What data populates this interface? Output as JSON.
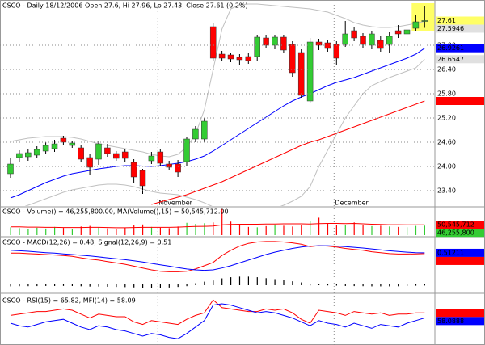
{
  "chart_data": [
    {
      "type": "candlestick",
      "title": "CSCO - Daily 18/12/2006 Open 27.6, Hi 27.96, Lo 27.43, Close 27.61 (0.2%)",
      "categories": [
        null,
        null,
        null,
        null,
        null,
        null,
        null,
        null,
        null,
        null,
        null,
        null,
        null,
        null,
        null,
        null,
        null,
        "November",
        null,
        null,
        null,
        null,
        null,
        null,
        null,
        null,
        null,
        null,
        null,
        null,
        null,
        null,
        null,
        null,
        null,
        null,
        null,
        "December",
        null,
        null,
        null,
        null,
        null,
        null,
        null,
        null,
        null,
        null
      ],
      "open": [
        23.82,
        24.22,
        24.24,
        24.28,
        24.38,
        24.44,
        24.7,
        24.52,
        24.46,
        24.22,
        24.18,
        24.46,
        24.32,
        24.36,
        24.1,
        23.9,
        24.14,
        24.36,
        24.06,
        24.06,
        24.12,
        24.68,
        24.68,
        27.46,
        26.78,
        26.76,
        26.7,
        26.72,
        26.72,
        27.18,
        27.0,
        27.2,
        27.02,
        26.82,
        25.62,
        27.08,
        27.06,
        27.02,
        27.02,
        27.36,
        27.22,
        27.0,
        27.12,
        27.02,
        27.36,
        27.28,
        27.42,
        27.6
      ],
      "high": [
        24.22,
        24.4,
        24.44,
        24.5,
        24.6,
        24.66,
        24.76,
        24.64,
        24.52,
        24.3,
        24.64,
        24.56,
        24.38,
        24.44,
        24.18,
        23.94,
        24.36,
        24.42,
        24.14,
        24.16,
        24.72,
        25.0,
        25.2,
        27.54,
        26.86,
        26.82,
        26.78,
        26.8,
        27.26,
        27.26,
        27.26,
        27.26,
        27.1,
        26.9,
        27.18,
        27.16,
        27.12,
        27.1,
        27.6,
        27.44,
        27.3,
        27.36,
        27.24,
        27.32,
        27.5,
        27.42,
        27.76,
        27.96
      ],
      "low": [
        23.72,
        24.12,
        24.14,
        24.2,
        24.3,
        24.36,
        24.54,
        24.46,
        24.1,
        23.78,
        24.04,
        24.24,
        24.14,
        24.12,
        23.6,
        23.32,
        24.06,
        24.0,
        23.92,
        23.74,
        24.02,
        24.6,
        24.6,
        26.6,
        26.6,
        26.58,
        26.52,
        26.54,
        26.6,
        26.92,
        26.9,
        26.8,
        26.22,
        25.7,
        25.58,
        26.88,
        26.84,
        26.5,
        26.96,
        27.1,
        26.94,
        26.9,
        26.84,
        26.8,
        27.18,
        27.2,
        27.36,
        27.43
      ],
      "close": [
        24.06,
        24.32,
        24.34,
        24.42,
        24.52,
        24.56,
        24.6,
        24.58,
        24.18,
        23.98,
        24.56,
        24.32,
        24.2,
        24.2,
        23.74,
        23.52,
        24.26,
        24.08,
        23.98,
        23.86,
        24.68,
        24.92,
        25.12,
        26.68,
        26.68,
        26.66,
        26.64,
        26.62,
        27.2,
        27.0,
        27.2,
        26.88,
        26.32,
        25.76,
        27.08,
        27.0,
        26.92,
        26.68,
        27.28,
        27.18,
        27.02,
        27.28,
        26.92,
        27.22,
        27.28,
        27.38,
        27.58,
        27.61
      ],
      "up_color": "#33cc33",
      "down_color": "#ff0000",
      "series": [
        {
          "color": "#0000ff",
          "values": [
            23.22,
            23.3,
            23.4,
            23.5,
            23.6,
            23.68,
            23.76,
            23.82,
            23.86,
            23.9,
            23.94,
            23.97,
            24.0,
            24.02,
            24.02,
            24.01,
            24.0,
            24.02,
            24.05,
            24.08,
            24.12,
            24.18,
            24.26,
            24.38,
            24.52,
            24.66,
            24.8,
            24.94,
            25.08,
            25.22,
            25.36,
            25.5,
            25.62,
            25.72,
            25.8,
            25.9,
            26.0,
            26.08,
            26.14,
            26.2,
            26.28,
            26.36,
            26.44,
            26.52,
            26.6,
            26.68,
            26.78,
            26.9261
          ]
        },
        {
          "color": "#ff0000",
          "values": [
            null,
            null,
            null,
            null,
            null,
            null,
            null,
            null,
            null,
            null,
            null,
            null,
            null,
            null,
            null,
            null,
            23.06,
            23.12,
            23.18,
            23.24,
            23.3,
            23.38,
            23.46,
            23.54,
            23.62,
            23.72,
            23.82,
            23.92,
            24.02,
            24.12,
            24.22,
            24.32,
            24.42,
            24.52,
            24.6,
            24.66,
            24.74,
            24.82,
            24.9,
            24.98,
            25.06,
            25.14,
            25.22,
            25.3,
            25.38,
            25.46,
            25.54,
            25.62
          ]
        },
        {
          "color": "#c0c0c0",
          "values": [
            24.62,
            24.66,
            24.7,
            24.72,
            24.74,
            24.74,
            24.74,
            24.72,
            24.68,
            24.62,
            24.56,
            24.52,
            24.48,
            24.44,
            24.4,
            24.36,
            24.3,
            24.26,
            24.24,
            24.3,
            24.48,
            24.8,
            25.4,
            26.4,
            27.4,
            27.9,
            28.0,
            28.02,
            28.02,
            28.0,
            27.98,
            27.96,
            27.94,
            27.92,
            27.9,
            27.86,
            27.82,
            27.74,
            27.66,
            27.56,
            27.5,
            27.46,
            27.44,
            27.44,
            27.46,
            27.5,
            27.54,
            27.5946
          ]
        },
        {
          "color": "#c0c0c0",
          "values": [
            22.9,
            22.96,
            23.04,
            23.12,
            23.2,
            23.28,
            23.36,
            23.42,
            23.46,
            23.5,
            23.54,
            23.56,
            23.56,
            23.54,
            23.5,
            23.44,
            23.38,
            23.34,
            23.32,
            23.3,
            23.24,
            23.18,
            23.1,
            23.0,
            22.9,
            22.86,
            22.84,
            22.84,
            22.86,
            22.9,
            22.96,
            23.04,
            23.14,
            23.26,
            23.5,
            24.0,
            24.4,
            24.8,
            25.2,
            25.5,
            25.8,
            26.0,
            26.1,
            26.2,
            26.28,
            26.36,
            26.44,
            26.6547
          ]
        }
      ],
      "ylim": [
        23.02,
        28.08
      ],
      "yticks": [
        {
          "value": 23.4,
          "label": "23.40"
        },
        {
          "value": 24,
          "label": "24.00"
        },
        {
          "value": 24.6,
          "label": "24.60"
        },
        {
          "value": 25.2,
          "label": "25.20"
        },
        {
          "value": 25.8,
          "label": "25.80"
        },
        {
          "value": 26.4,
          "label": "26.40"
        },
        {
          "value": 27,
          "label": "27.00"
        }
      ],
      "grid": true,
      "highlight_color": "#ffff66"
    },
    {
      "type": "bar",
      "title": "CSCO - Volume() = 46,255,800.00, MA(Volume(),15) = 50,545,712.00",
      "values": [
        38000000,
        34000000,
        30000000,
        36000000,
        32000000,
        40000000,
        35000000,
        30000000,
        42000000,
        45000000,
        38000000,
        33000000,
        30000000,
        36000000,
        48000000,
        52000000,
        40000000,
        36000000,
        34000000,
        42000000,
        60000000,
        55000000,
        58000000,
        62000000,
        128000000,
        66000000,
        48000000,
        40000000,
        38000000,
        44000000,
        52000000,
        46000000,
        42000000,
        48000000,
        70000000,
        85000000,
        56000000,
        50000000,
        48000000,
        62000000,
        50000000,
        44000000,
        46000000,
        42000000,
        40000000,
        38000000,
        45000000,
        46255800
      ],
      "value_label": "46,255,800",
      "series": [
        {
          "color": "#ff0000",
          "values": [
            40000000,
            40000000,
            39000000,
            39000000,
            38000000,
            38000000,
            37000000,
            37000000,
            37000000,
            38000000,
            38000000,
            37000000,
            36000000,
            36000000,
            37000000,
            38000000,
            38000000,
            38000000,
            38000000,
            39000000,
            41000000,
            42000000,
            43000000,
            44000000,
            50000000,
            52000000,
            53000000,
            53000000,
            53000000,
            54000000,
            54000000,
            55000000,
            55000000,
            55000000,
            54000000,
            56000000,
            57000000,
            57000000,
            56000000,
            57000000,
            55000000,
            53000000,
            52000000,
            51000000,
            51000000,
            50000000,
            50000000,
            50545712
          ],
          "value_label": "50,545,712"
        }
      ],
      "box_color": "#33cc33",
      "ylim": [
        0,
        130000000
      ]
    },
    {
      "type": "macd",
      "title": "CSCO - MACD(12,26) = 0.48, Signal(12,26,9) = 0.51",
      "series": [
        {
          "color": "#ff0000",
          "values": [
            0.5,
            0.5,
            0.48,
            0.46,
            0.44,
            0.42,
            0.4,
            0.36,
            0.3,
            0.24,
            0.2,
            0.14,
            0.08,
            0.02,
            -0.06,
            -0.14,
            -0.22,
            -0.28,
            -0.3,
            -0.3,
            -0.28,
            -0.18,
            -0.04,
            0.1,
            0.4,
            0.62,
            0.8,
            0.92,
            0.98,
            1.0,
            1.0,
            0.98,
            0.94,
            0.88,
            0.78,
            0.82,
            0.8,
            0.76,
            0.7,
            0.66,
            0.62,
            0.56,
            0.52,
            0.48,
            0.46,
            0.46,
            0.47,
            0.48
          ]
        },
        {
          "color": "#0000ff",
          "values": [
            0.62,
            0.6,
            0.58,
            0.55,
            0.52,
            0.5,
            0.47,
            0.44,
            0.41,
            0.38,
            0.34,
            0.3,
            0.26,
            0.22,
            0.17,
            0.12,
            0.06,
            0,
            -0.06,
            -0.12,
            -0.18,
            -0.22,
            -0.24,
            -0.22,
            -0.14,
            -0.04,
            0.08,
            0.2,
            0.32,
            0.44,
            0.54,
            0.62,
            0.7,
            0.76,
            0.8,
            0.82,
            0.82,
            0.8,
            0.78,
            0.75,
            0.72,
            0.68,
            0.64,
            0.6,
            0.57,
            0.54,
            0.52,
            0.51211
          ]
        }
      ],
      "histogram": {
        "color": "#000000",
        "values": [
          -0.12,
          -0.1,
          -0.1,
          -0.09,
          -0.08,
          -0.08,
          -0.07,
          -0.08,
          -0.11,
          -0.14,
          -0.14,
          -0.16,
          -0.18,
          -0.2,
          -0.23,
          -0.26,
          -0.28,
          -0.28,
          -0.24,
          -0.18,
          -0.1,
          0.04,
          0.2,
          0.32,
          0.54,
          0.66,
          0.72,
          0.72,
          0.66,
          0.56,
          0.46,
          0.36,
          0.24,
          0.12,
          -0.02,
          0,
          -0.02,
          -0.04,
          -0.08,
          -0.09,
          -0.1,
          -0.12,
          -0.12,
          -0.12,
          -0.11,
          -0.08,
          -0.05,
          -0.03
        ]
      },
      "ylim": [
        -0.6,
        1.1
      ]
    },
    {
      "type": "line",
      "title": "CSCO - RSI(15) = 65.82, MFI(14) = 58.09",
      "series": [
        {
          "color": "#ff0000",
          "values": [
            62,
            64,
            66,
            68,
            68,
            70,
            72,
            70,
            64,
            58,
            64,
            62,
            60,
            60,
            52,
            48,
            54,
            52,
            50,
            48,
            56,
            62,
            66,
            86,
            74,
            72,
            70,
            68,
            68,
            72,
            70,
            72,
            66,
            56,
            50,
            70,
            68,
            66,
            62,
            68,
            66,
            64,
            66,
            62,
            64,
            64,
            66,
            65.82
          ]
        },
        {
          "color": "#0000ff",
          "values": [
            50,
            46,
            44,
            48,
            52,
            54,
            56,
            50,
            44,
            40,
            46,
            44,
            40,
            38,
            34,
            30,
            34,
            32,
            28,
            26,
            34,
            44,
            54,
            78,
            80,
            78,
            74,
            70,
            66,
            68,
            66,
            62,
            58,
            52,
            46,
            54,
            50,
            48,
            44,
            50,
            46,
            42,
            48,
            46,
            44,
            50,
            54,
            58.0888
          ]
        }
      ],
      "ylim": [
        20,
        90
      ]
    }
  ]
}
